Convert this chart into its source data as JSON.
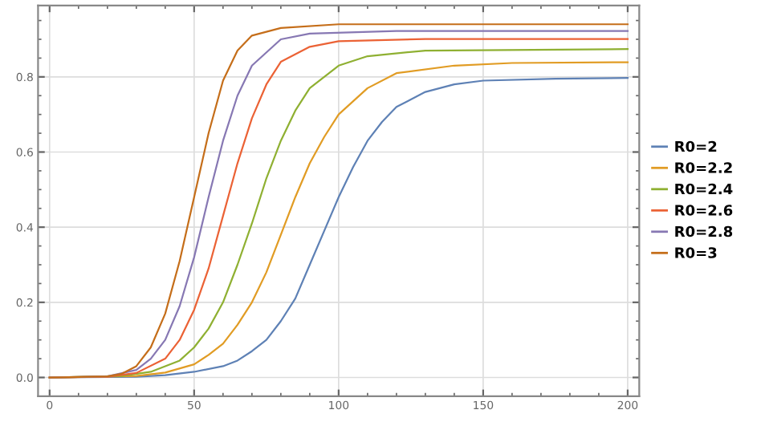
{
  "chart_data": {
    "type": "line",
    "xlim": [
      -4,
      204
    ],
    "ylim": [
      -0.05,
      0.99
    ],
    "xticks": [
      0,
      50,
      100,
      150,
      200
    ],
    "yticks": [
      {
        "value": 0,
        "label": "0.0"
      },
      {
        "value": 0.2,
        "label": "0.2"
      },
      {
        "value": 0.4,
        "label": "0.4"
      },
      {
        "value": 0.6,
        "label": "0.6"
      },
      {
        "value": 0.8,
        "label": "0.8"
      }
    ],
    "grid": true,
    "legend": "right",
    "marker": "none",
    "line_style": "solid",
    "series": [
      {
        "name": "R0=2",
        "color": "#5e81b5",
        "x": [
          0,
          30,
          40,
          50,
          60,
          65,
          70,
          75,
          80,
          85,
          90,
          95,
          100,
          105,
          110,
          115,
          120,
          130,
          140,
          150,
          175,
          200
        ],
        "values": [
          0,
          0.002,
          0.006,
          0.015,
          0.03,
          0.045,
          0.07,
          0.1,
          0.15,
          0.21,
          0.3,
          0.39,
          0.48,
          0.56,
          0.63,
          0.68,
          0.72,
          0.76,
          0.78,
          0.79,
          0.795,
          0.797
        ]
      },
      {
        "name": "R0=2.2",
        "color": "#e19c24",
        "x": [
          0,
          30,
          40,
          50,
          55,
          60,
          65,
          70,
          75,
          80,
          85,
          90,
          95,
          100,
          110,
          120,
          140,
          160,
          200
        ],
        "values": [
          0,
          0.004,
          0.013,
          0.035,
          0.06,
          0.09,
          0.14,
          0.2,
          0.28,
          0.38,
          0.48,
          0.57,
          0.64,
          0.7,
          0.77,
          0.81,
          0.83,
          0.837,
          0.839
        ]
      },
      {
        "name": "R0=2.4",
        "color": "#8fb032",
        "x": [
          0,
          25,
          35,
          45,
          50,
          55,
          60,
          65,
          70,
          75,
          80,
          85,
          90,
          100,
          110,
          130,
          200
        ],
        "values": [
          0,
          0.004,
          0.015,
          0.045,
          0.08,
          0.13,
          0.2,
          0.3,
          0.41,
          0.53,
          0.63,
          0.71,
          0.77,
          0.83,
          0.855,
          0.87,
          0.874
        ]
      },
      {
        "name": "R0=2.6",
        "color": "#eb6235",
        "x": [
          0,
          20,
          30,
          40,
          45,
          50,
          55,
          60,
          65,
          70,
          75,
          80,
          90,
          100,
          130,
          200
        ],
        "values": [
          0,
          0.002,
          0.012,
          0.05,
          0.1,
          0.18,
          0.29,
          0.43,
          0.57,
          0.69,
          0.78,
          0.84,
          0.88,
          0.895,
          0.901,
          0.901
        ]
      },
      {
        "name": "R0=2.8",
        "color": "#8778b3",
        "x": [
          0,
          20,
          30,
          35,
          40,
          45,
          50,
          55,
          60,
          65,
          70,
          80,
          90,
          120,
          200
        ],
        "values": [
          0,
          0.003,
          0.02,
          0.05,
          0.1,
          0.19,
          0.32,
          0.48,
          0.63,
          0.75,
          0.83,
          0.9,
          0.915,
          0.922,
          0.922
        ]
      },
      {
        "name": "R0=3",
        "color": "#c56e1a",
        "x": [
          0,
          20,
          25,
          30,
          35,
          40,
          45,
          50,
          55,
          60,
          65,
          70,
          80,
          100,
          150,
          200
        ],
        "values": [
          0,
          0.003,
          0.01,
          0.03,
          0.08,
          0.17,
          0.31,
          0.48,
          0.65,
          0.79,
          0.87,
          0.91,
          0.93,
          0.94,
          0.94,
          0.94
        ]
      }
    ]
  }
}
